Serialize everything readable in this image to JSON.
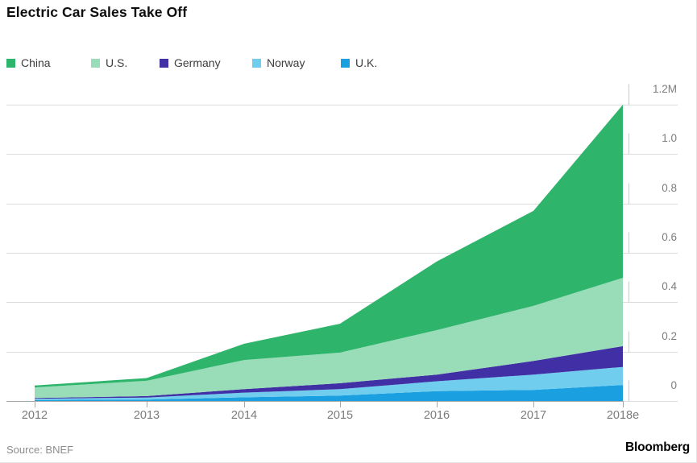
{
  "footer": {
    "source": "Source: BNEF",
    "brand": "Bloomberg"
  },
  "chart_data": {
    "type": "area",
    "stacked": true,
    "title": "Electric Car Sales Take Off",
    "unit": "millions of vehicles per year",
    "legend_position": "top",
    "grid": true,
    "x": [
      "2012",
      "2013",
      "2014",
      "2015",
      "2016",
      "2017",
      "2018e"
    ],
    "ylim": [
      0,
      1.2
    ],
    "y_ticks": [
      {
        "value": 1.2,
        "label": "1.2M"
      },
      {
        "value": 1.0,
        "label": "1.0"
      },
      {
        "value": 0.8,
        "label": "0.8"
      },
      {
        "value": 0.6,
        "label": "0.6"
      },
      {
        "value": 0.4,
        "label": "0.4"
      },
      {
        "value": 0.2,
        "label": "0.2"
      },
      {
        "value": 0.0,
        "label": "0"
      }
    ],
    "series": [
      {
        "name": "China",
        "color": "#2fb56b",
        "values": [
          0.008,
          0.011,
          0.066,
          0.117,
          0.278,
          0.385,
          0.701
        ]
      },
      {
        "name": "U.S.",
        "color": "#98dcb8",
        "values": [
          0.043,
          0.062,
          0.118,
          0.124,
          0.18,
          0.223,
          0.277
        ]
      },
      {
        "name": "Germany",
        "color": "#4130a5",
        "values": [
          0.003,
          0.006,
          0.014,
          0.024,
          0.027,
          0.055,
          0.084
        ]
      },
      {
        "name": "Norway",
        "color": "#70cded",
        "values": [
          0.005,
          0.008,
          0.019,
          0.026,
          0.04,
          0.062,
          0.073
        ]
      },
      {
        "name": "U.K.",
        "color": "#1a9fe0",
        "values": [
          0.004,
          0.006,
          0.015,
          0.022,
          0.04,
          0.045,
          0.065
        ]
      }
    ],
    "totals": [
      0.063,
      0.093,
      0.232,
      0.313,
      0.565,
      0.77,
      1.2
    ]
  }
}
